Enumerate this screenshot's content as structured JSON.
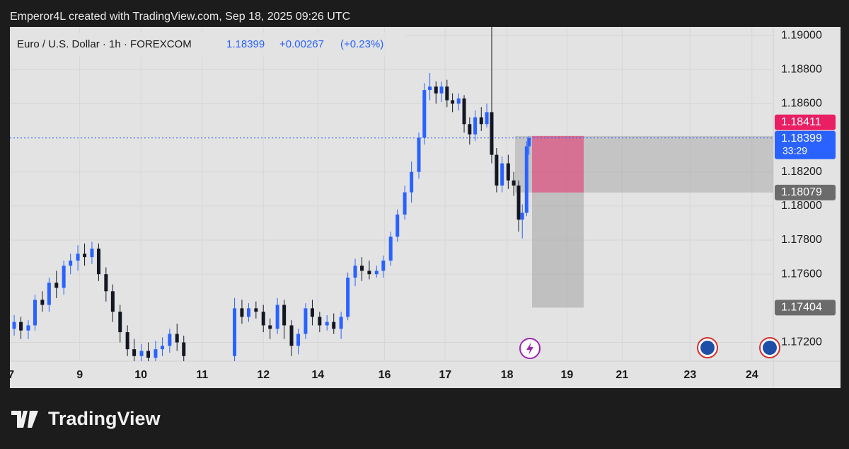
{
  "header": {
    "attribution": "Emperor4L created with TradingView.com, Sep 18, 2025 09:26 UTC"
  },
  "footer": {
    "brand": "TradingView"
  },
  "chart_data": {
    "type": "candlestick",
    "title": "Euro / U.S. Dollar · 1h · FOREXCOM",
    "last_price": 1.18399,
    "change": "+0.00267",
    "change_pct": "(+0.23%)",
    "countdown": "33:29",
    "up_color": "#2962ff",
    "down_color": "#131722",
    "grid": true,
    "x": [
      0.05,
      0.16,
      0.28,
      0.39,
      0.51,
      0.62,
      0.74,
      0.86,
      0.97,
      1.09,
      1.2,
      1.32,
      1.43,
      1.55,
      1.66,
      1.78,
      1.9,
      2.01,
      2.13,
      2.24,
      2.36,
      2.47,
      2.59,
      2.71,
      2.82,
      3.65,
      3.77,
      3.88,
      4.0,
      4.12,
      4.23,
      4.35,
      4.46,
      4.58,
      4.69,
      4.81,
      4.92,
      5.04,
      5.16,
      5.27,
      5.39,
      5.5,
      5.62,
      5.73,
      5.85,
      5.97,
      6.08,
      6.2,
      6.31,
      6.43,
      6.54,
      6.66,
      6.75,
      6.84,
      6.94,
      7.03,
      7.12,
      7.21,
      7.31,
      7.4,
      7.49,
      7.58,
      7.68,
      7.77,
      7.85,
      7.93,
      8.02,
      8.12,
      8.21,
      8.29,
      8.35,
      8.42,
      8.46
    ],
    "open": [
      1.1728,
      1.1732,
      1.1727,
      1.173,
      1.1745,
      1.1742,
      1.1755,
      1.1752,
      1.1765,
      1.1768,
      1.1772,
      1.177,
      1.1775,
      1.176,
      1.175,
      1.1738,
      1.1726,
      1.1716,
      1.1712,
      1.1715,
      1.1711,
      1.1716,
      1.1718,
      1.1725,
      1.172,
      1.1712,
      1.174,
      1.1735,
      1.174,
      1.1738,
      1.173,
      1.1728,
      1.1742,
      1.173,
      1.1718,
      1.1725,
      1.174,
      1.1735,
      1.173,
      1.1732,
      1.1728,
      1.1735,
      1.1758,
      1.1765,
      1.1762,
      1.176,
      1.1762,
      1.1768,
      1.1782,
      1.1795,
      1.1808,
      1.182,
      1.184,
      1.1868,
      1.187,
      1.1866,
      1.187,
      1.1862,
      1.186,
      1.1863,
      1.1848,
      1.1842,
      1.1852,
      1.1848,
      1.1855,
      1.183,
      1.1812,
      1.1825,
      1.1815,
      1.1812,
      1.1792,
      1.1796,
      1.1835
    ],
    "high": [
      1.1736,
      1.1735,
      1.1733,
      1.1748,
      1.175,
      1.1758,
      1.1762,
      1.1768,
      1.1772,
      1.1777,
      1.1778,
      1.1779,
      1.1778,
      1.1764,
      1.1754,
      1.1742,
      1.173,
      1.1722,
      1.1719,
      1.172,
      1.1721,
      1.1723,
      1.1728,
      1.1731,
      1.1724,
      1.1746,
      1.1745,
      1.1743,
      1.1744,
      1.1742,
      1.1734,
      1.1746,
      1.1745,
      1.1733,
      1.1728,
      1.1743,
      1.1745,
      1.1738,
      1.1736,
      1.1737,
      1.1738,
      1.1761,
      1.1769,
      1.177,
      1.1768,
      1.1765,
      1.1771,
      1.1785,
      1.1798,
      1.1812,
      1.1826,
      1.1843,
      1.1872,
      1.1878,
      1.1873,
      1.1873,
      1.1874,
      1.1866,
      1.1866,
      1.1865,
      1.1852,
      1.1856,
      1.1858,
      1.186,
      1.1905,
      1.1834,
      1.1829,
      1.183,
      1.182,
      1.1815,
      1.1801,
      1.1838,
      1.1841
    ],
    "low": [
      1.1724,
      1.1722,
      1.1722,
      1.1727,
      1.1738,
      1.1738,
      1.1746,
      1.1748,
      1.176,
      1.1762,
      1.1765,
      1.1766,
      1.1756,
      1.1744,
      1.1732,
      1.172,
      1.1712,
      1.1709,
      1.1709,
      1.1709,
      1.1709,
      1.1712,
      1.1714,
      1.1715,
      1.1709,
      1.1709,
      1.1731,
      1.1732,
      1.1734,
      1.1726,
      1.1722,
      1.1725,
      1.1722,
      1.1712,
      1.1713,
      1.1722,
      1.173,
      1.1726,
      1.1727,
      1.1725,
      1.1722,
      1.1733,
      1.1753,
      1.1756,
      1.1757,
      1.1758,
      1.1758,
      1.1765,
      1.1779,
      1.1792,
      1.1802,
      1.1816,
      1.1836,
      1.1862,
      1.186,
      1.1861,
      1.1858,
      1.1855,
      1.1856,
      1.1843,
      1.1836,
      1.1838,
      1.1844,
      1.1846,
      1.1825,
      1.1808,
      1.1808,
      1.181,
      1.1806,
      1.1785,
      1.1781,
      1.1794,
      1.183
    ],
    "close": [
      1.1732,
      1.1727,
      1.173,
      1.1745,
      1.1742,
      1.1755,
      1.1752,
      1.1765,
      1.1768,
      1.1772,
      1.177,
      1.1775,
      1.176,
      1.175,
      1.1738,
      1.1726,
      1.1716,
      1.1712,
      1.1715,
      1.1711,
      1.1716,
      1.1718,
      1.1725,
      1.172,
      1.1712,
      1.174,
      1.1735,
      1.174,
      1.1738,
      1.173,
      1.1728,
      1.1742,
      1.173,
      1.1718,
      1.1725,
      1.174,
      1.1735,
      1.173,
      1.1732,
      1.1728,
      1.1735,
      1.1758,
      1.1765,
      1.1762,
      1.176,
      1.1762,
      1.1768,
      1.1782,
      1.1795,
      1.1808,
      1.182,
      1.184,
      1.1868,
      1.187,
      1.1866,
      1.187,
      1.1862,
      1.186,
      1.1863,
      1.1848,
      1.1842,
      1.1852,
      1.1848,
      1.1855,
      1.183,
      1.1812,
      1.1825,
      1.1815,
      1.1812,
      1.1792,
      1.1796,
      1.1835,
      1.18399
    ],
    "position": {
      "stop": 1.18411,
      "entry": 1.18079,
      "target": 1.17404,
      "stop_color": "#e91e63",
      "label_color": "#6b6b6b"
    },
    "xlim": [
      -0.02,
      12.45
    ],
    "ylim": [
      1.1709,
      1.1905
    ],
    "xticks": [
      {
        "value": 0,
        "label": "7"
      },
      {
        "value": 1.12,
        "label": "9"
      },
      {
        "value": 2.12,
        "label": "10"
      },
      {
        "value": 3.12,
        "label": "11"
      },
      {
        "value": 4.12,
        "label": "12"
      },
      {
        "value": 5.01,
        "label": "14"
      },
      {
        "value": 6.1,
        "label": "16"
      },
      {
        "value": 7.09,
        "label": "17"
      },
      {
        "value": 8.1,
        "label": "18"
      },
      {
        "value": 9.08,
        "label": "19"
      },
      {
        "value": 9.98,
        "label": "21"
      },
      {
        "value": 11.09,
        "label": "23"
      },
      {
        "value": 12.1,
        "label": "24"
      }
    ],
    "yticks": [
      {
        "value": 1.19,
        "label": "1.19000"
      },
      {
        "value": 1.188,
        "label": "1.18800"
      },
      {
        "value": 1.186,
        "label": "1.18600"
      },
      {
        "value": 1.182,
        "label": "1.18200"
      },
      {
        "value": 1.18,
        "label": "1.18000"
      },
      {
        "value": 1.178,
        "label": "1.17800"
      },
      {
        "value": 1.176,
        "label": "1.17600"
      },
      {
        "value": 1.172,
        "label": "1.17200"
      }
    ]
  }
}
